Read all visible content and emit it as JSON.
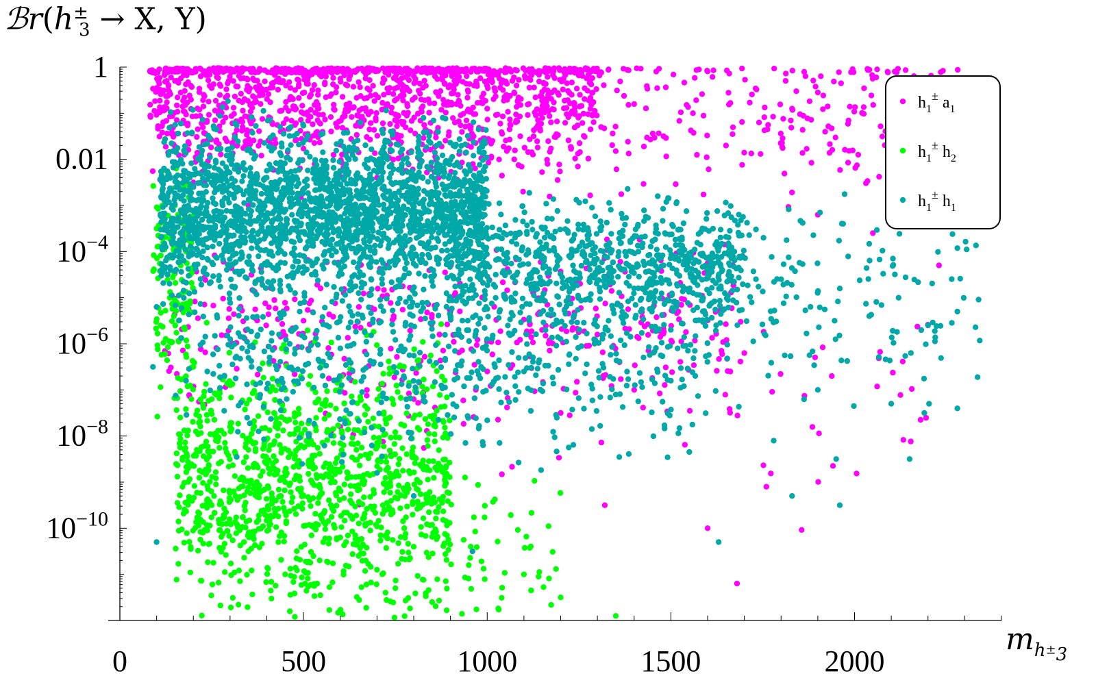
{
  "chart_data": {
    "type": "scatter",
    "title": "",
    "ylabel": "Br(h3± → X, Y)",
    "xlabel": "m h3±",
    "x_range": [
      0,
      2400
    ],
    "y_log10_range": [
      -12,
      0
    ],
    "y_scale": "log",
    "grid": false,
    "legend_position": "top-right",
    "x_ticks": [
      "0",
      "500",
      "1000",
      "1500",
      "2000"
    ],
    "y_ticks": [
      "1",
      "0.01",
      "10−4",
      "10−6",
      "10−8",
      "10−10"
    ],
    "series": [
      {
        "name": "h1± a1",
        "color": "#ff00ff",
        "points": [
          [
            95,
            -0.1
          ],
          [
            150,
            -0.3
          ],
          [
            220,
            -0.2
          ],
          [
            300,
            -0.05
          ],
          [
            380,
            -0.4
          ],
          [
            450,
            -0.15
          ],
          [
            520,
            -0.6
          ],
          [
            600,
            -0.25
          ],
          [
            680,
            -0.5
          ],
          [
            760,
            -0.1
          ],
          [
            840,
            -0.7
          ],
          [
            920,
            -0.3
          ],
          [
            1000,
            -0.9
          ],
          [
            1080,
            -0.4
          ],
          [
            1150,
            -1.1
          ],
          [
            1230,
            -0.6
          ],
          [
            1310,
            -1.3
          ],
          [
            1400,
            -0.8
          ],
          [
            1480,
            -1.5
          ],
          [
            1560,
            -1.0
          ],
          [
            1650,
            -1.7
          ],
          [
            1740,
            -1.2
          ],
          [
            1830,
            -0.9
          ],
          [
            1920,
            -1.4
          ],
          [
            2010,
            -1.9
          ],
          [
            2090,
            -1.1
          ],
          [
            2180,
            -1.6
          ],
          [
            2260,
            -2.0
          ],
          [
            1900,
            -3.2
          ],
          [
            2050,
            -3.6
          ],
          [
            2230,
            -4.3
          ],
          [
            1700,
            -6.2
          ],
          [
            1760,
            -9.1
          ],
          [
            1600,
            -10.0
          ],
          [
            1680,
            -11.2
          ],
          [
            1320,
            -9.5
          ],
          [
            600,
            -7.8
          ],
          [
            800,
            -7.2
          ],
          [
            1000,
            -6.6
          ],
          [
            1200,
            -7.5
          ],
          [
            1400,
            -7.0
          ],
          [
            500,
            -5.5
          ],
          [
            900,
            -5.3
          ],
          [
            1300,
            -5.8
          ],
          [
            200,
            -2.5
          ],
          [
            350,
            -3.0
          ],
          [
            700,
            -2.4
          ]
        ]
      },
      {
        "name": "h1± h2",
        "color": "#00ff00",
        "points": [
          [
            100,
            -3.5
          ],
          [
            130,
            -4.5
          ],
          [
            160,
            -5.5
          ],
          [
            200,
            -6.5
          ],
          [
            250,
            -7.2
          ],
          [
            300,
            -7.8
          ],
          [
            350,
            -8.3
          ],
          [
            400,
            -8.6
          ],
          [
            450,
            -9.0
          ],
          [
            500,
            -9.3
          ],
          [
            550,
            -9.8
          ],
          [
            600,
            -10.2
          ],
          [
            650,
            -10.6
          ],
          [
            700,
            -10.9
          ],
          [
            750,
            -11.3
          ],
          [
            800,
            -10.4
          ],
          [
            850,
            -11.6
          ],
          [
            900,
            -12.0
          ],
          [
            300,
            -6.9
          ],
          [
            420,
            -7.5
          ],
          [
            520,
            -8.1
          ],
          [
            620,
            -8.8
          ],
          [
            720,
            -9.6
          ],
          [
            250,
            -9.5
          ],
          [
            350,
            -10.5
          ],
          [
            450,
            -11.0
          ],
          [
            950,
            -10.8
          ],
          [
            1100,
            -11.0
          ],
          [
            1200,
            -11.5
          ],
          [
            1350,
            -11.9
          ],
          [
            150,
            -3.0
          ],
          [
            180,
            -4.0
          ]
        ]
      },
      {
        "name": "h1± h1",
        "color": "#00a8a8",
        "points": [
          [
            120,
            -2.2
          ],
          [
            200,
            -2.6
          ],
          [
            280,
            -3.0
          ],
          [
            360,
            -2.4
          ],
          [
            440,
            -3.5
          ],
          [
            520,
            -2.9
          ],
          [
            600,
            -3.8
          ],
          [
            680,
            -3.2
          ],
          [
            760,
            -4.0
          ],
          [
            840,
            -3.4
          ],
          [
            920,
            -4.2
          ],
          [
            1000,
            -3.7
          ],
          [
            1080,
            -4.5
          ],
          [
            1160,
            -3.9
          ],
          [
            1240,
            -4.6
          ],
          [
            1320,
            -4.1
          ],
          [
            1400,
            -4.8
          ],
          [
            1480,
            -4.3
          ],
          [
            1560,
            -4.9
          ],
          [
            1640,
            -4.4
          ],
          [
            1720,
            -5.1
          ],
          [
            1800,
            -4.6
          ],
          [
            1880,
            -5.2
          ],
          [
            1960,
            -4.8
          ],
          [
            2040,
            -5.4
          ],
          [
            2120,
            -5.0
          ],
          [
            2200,
            -5.6
          ],
          [
            2280,
            -5.3
          ],
          [
            2350,
            -5.1
          ],
          [
            1900,
            -7.0
          ],
          [
            2100,
            -7.3
          ],
          [
            2190,
            -7.5
          ],
          [
            2280,
            -7.4
          ],
          [
            1780,
            -8.1
          ],
          [
            1830,
            -9.3
          ],
          [
            1950,
            -8.5
          ],
          [
            1960,
            -9.5
          ],
          [
            2150,
            -8.5
          ],
          [
            1630,
            -10.3
          ],
          [
            960,
            -10.5
          ],
          [
            800,
            -9.3
          ],
          [
            700,
            -8.8
          ],
          [
            100,
            -10.3
          ],
          [
            90,
            -6.5
          ],
          [
            100,
            -5.2
          ],
          [
            600,
            -6.1
          ],
          [
            1100,
            -6.6
          ],
          [
            1350,
            -7.1
          ],
          [
            1500,
            -6.8
          ]
        ]
      }
    ]
  }
}
